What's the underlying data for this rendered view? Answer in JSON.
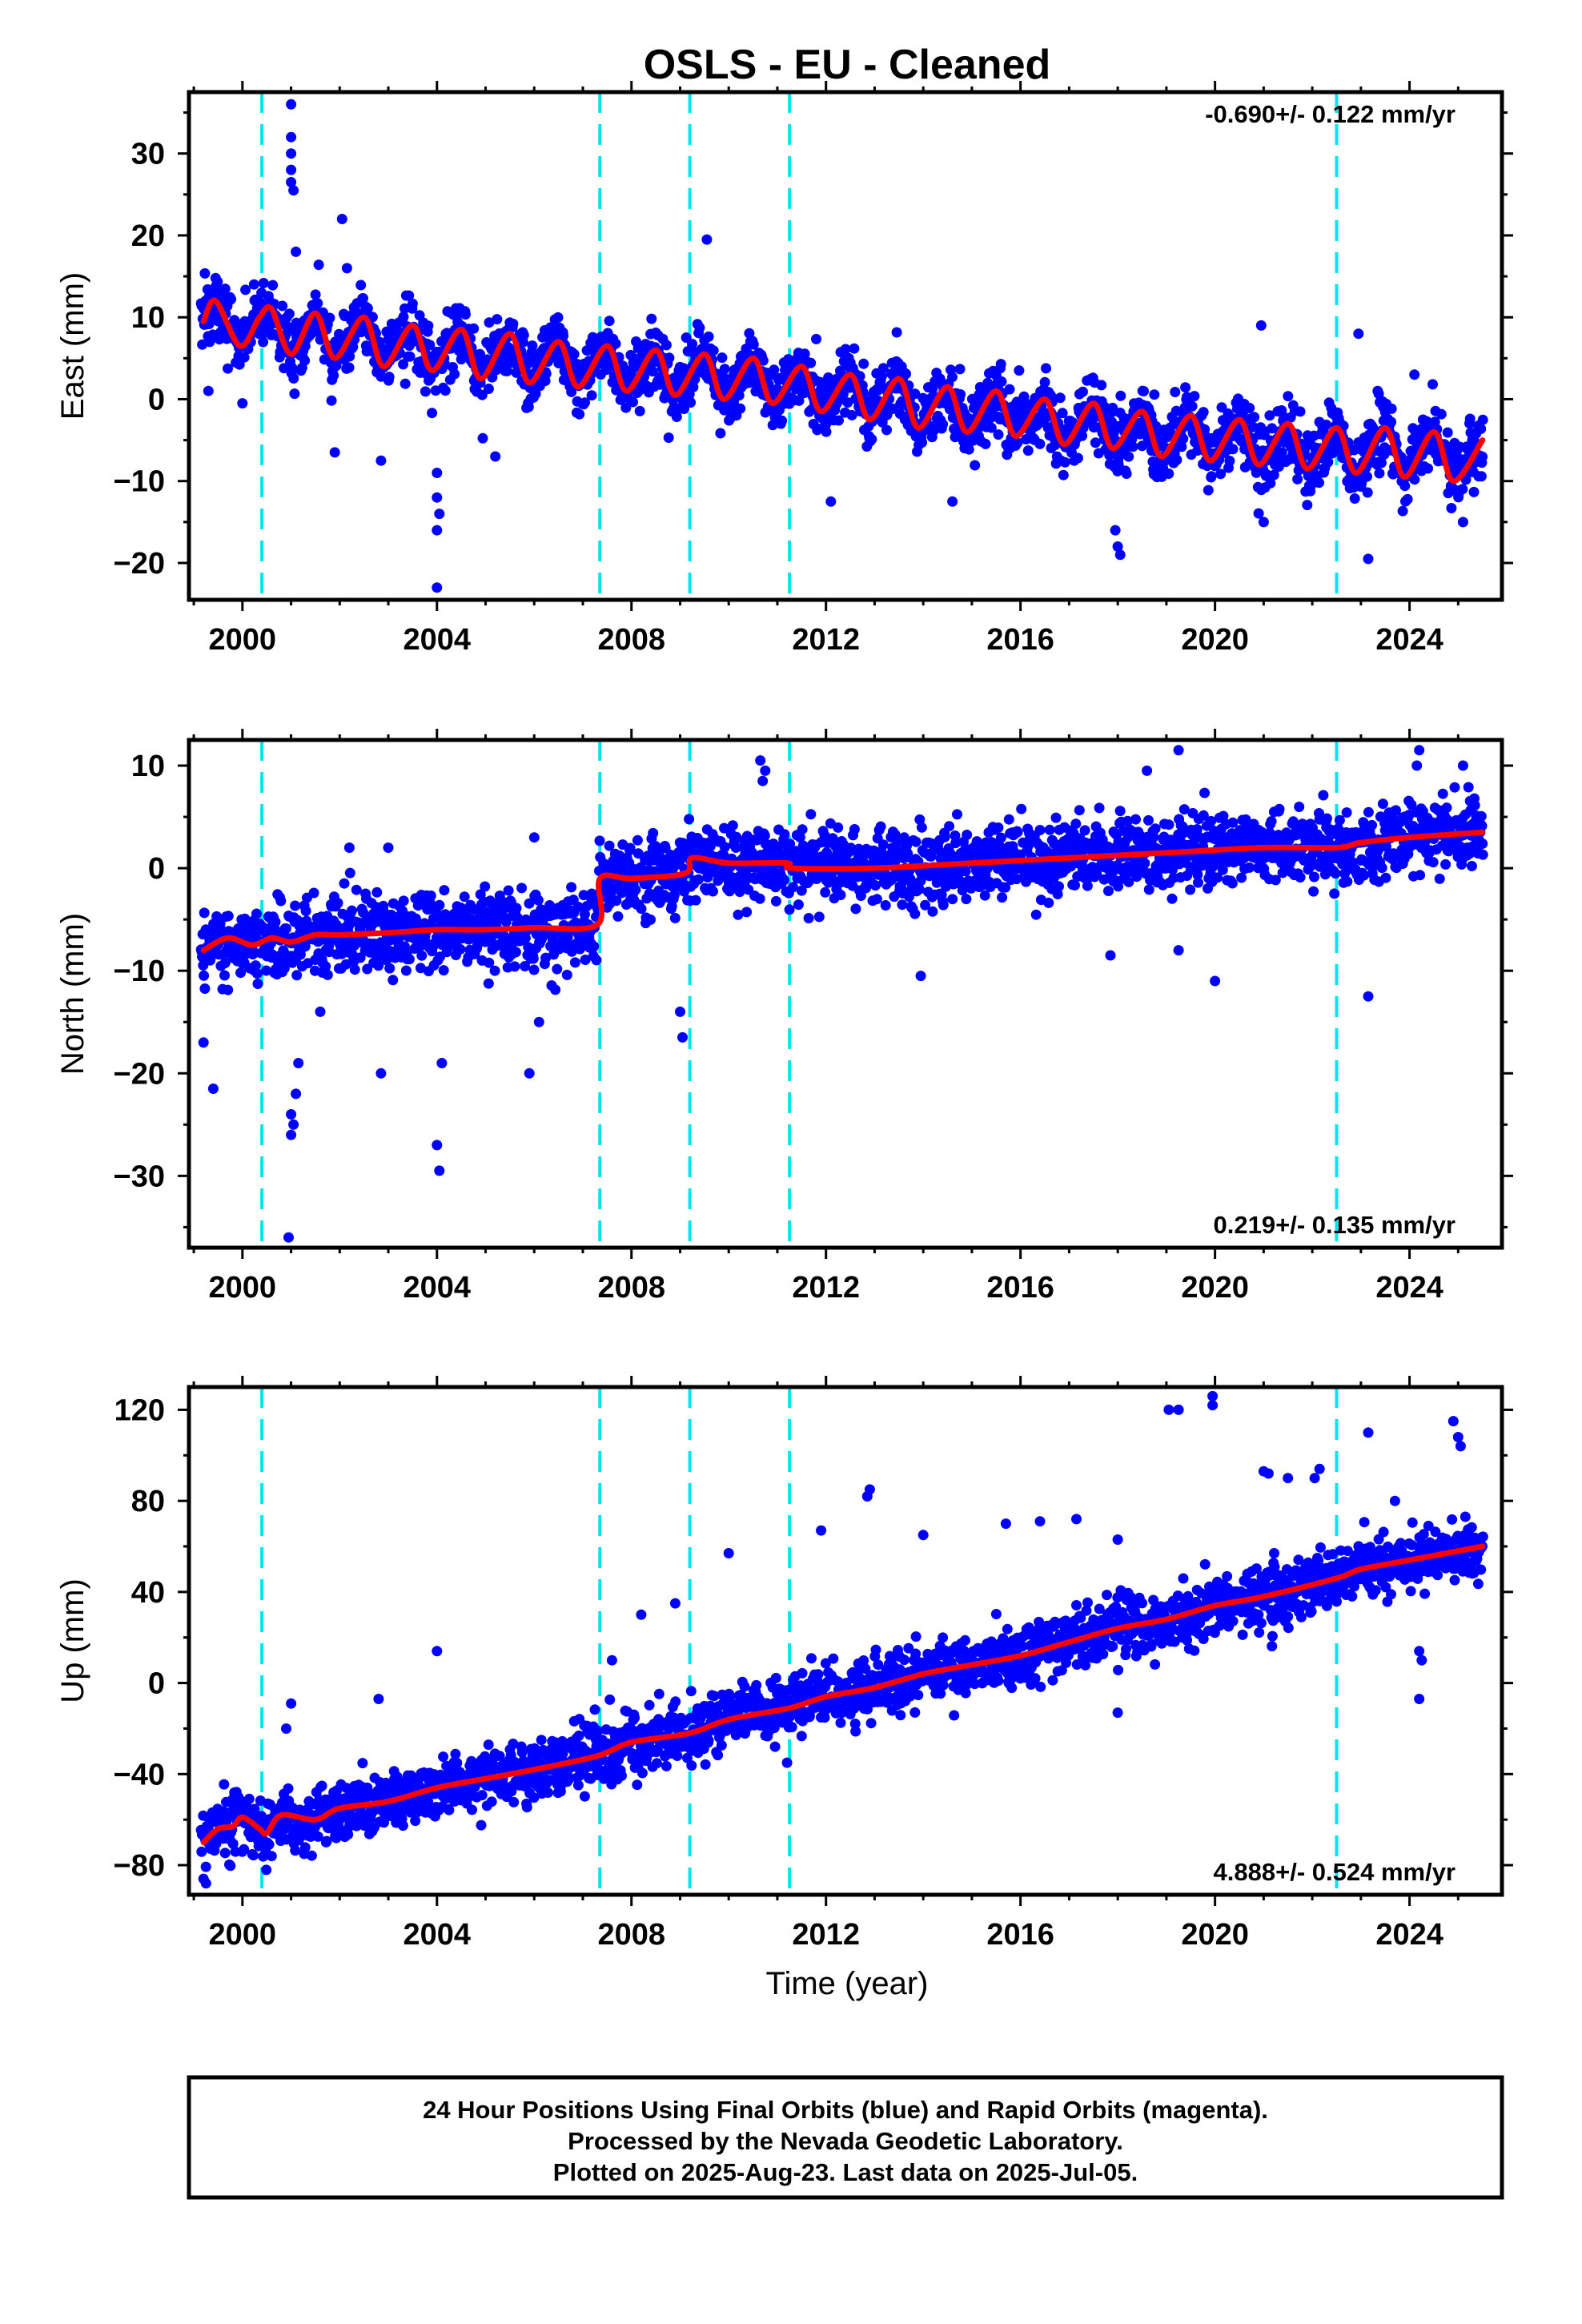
{
  "title": "OSLS  - EU - Cleaned",
  "x_axis_label": "Time (year)",
  "footer": {
    "line1": "24 Hour Positions Using Final Orbits (blue) and Rapid Orbits (magenta).",
    "line2": "Processed by the Nevada Geodetic Laboratory.",
    "line3": "Plotted on 2025-Aug-23. Last data on 2025-Jul-05."
  },
  "colors": {
    "final_orbit_points": "#0000ff",
    "model_fit": "#ff0000",
    "offset_lines": "#00e5ee"
  },
  "chart_data": [
    {
      "type": "scatter",
      "component": "East",
      "ylabel": "East (mm)",
      "xlim": [
        1998.9,
        2025.9
      ],
      "ylim": [
        -24.5,
        37.5
      ],
      "x_ticks": [
        2000,
        2004,
        2008,
        2012,
        2016,
        2020,
        2024
      ],
      "y_ticks": [
        -20,
        -10,
        0,
        10,
        20,
        30
      ],
      "rate_label": "-0.690+/- 0.122 mm/yr",
      "rate_label_position": "top-right",
      "data_start": 1999.15,
      "data_end": 2025.51,
      "fit_points": [
        [
          1999.2,
          9.5
        ],
        [
          1999.45,
          12.0
        ],
        [
          1999.95,
          6.5
        ],
        [
          2000.35,
          10.0
        ],
        [
          2000.6,
          11.0
        ],
        [
          2001.0,
          5.5
        ],
        [
          2001.5,
          10.5
        ],
        [
          2001.9,
          5.0
        ],
        [
          2002.5,
          10.0
        ],
        [
          2002.9,
          4.0
        ],
        [
          2003.5,
          9.0
        ],
        [
          2003.9,
          3.5
        ],
        [
          2004.5,
          8.5
        ],
        [
          2004.9,
          2.5
        ],
        [
          2005.5,
          8.0
        ],
        [
          2005.9,
          2.0
        ],
        [
          2006.5,
          7.0
        ],
        [
          2006.9,
          1.5
        ],
        [
          2007.5,
          6.5
        ],
        [
          2007.9,
          1.0
        ],
        [
          2008.5,
          6.0
        ],
        [
          2008.9,
          0.5
        ],
        [
          2009.5,
          5.5
        ],
        [
          2009.9,
          0.0
        ],
        [
          2010.5,
          5.0
        ],
        [
          2010.9,
          -0.5
        ],
        [
          2011.5,
          4.0
        ],
        [
          2011.9,
          -1.5
        ],
        [
          2012.5,
          3.0
        ],
        [
          2012.9,
          -2.5
        ],
        [
          2013.5,
          2.5
        ],
        [
          2013.9,
          -3.5
        ],
        [
          2014.5,
          1.5
        ],
        [
          2014.9,
          -4.0
        ],
        [
          2015.5,
          1.0
        ],
        [
          2015.9,
          -4.5
        ],
        [
          2016.5,
          0.0
        ],
        [
          2016.9,
          -5.5
        ],
        [
          2017.5,
          -0.5
        ],
        [
          2017.9,
          -6.0
        ],
        [
          2018.5,
          -1.5
        ],
        [
          2018.9,
          -7.0
        ],
        [
          2019.5,
          -2.0
        ],
        [
          2019.9,
          -7.5
        ],
        [
          2020.5,
          -2.5
        ],
        [
          2020.9,
          -8.0
        ],
        [
          2021.5,
          -3.0
        ],
        [
          2021.9,
          -8.5
        ],
        [
          2022.5,
          -3.5
        ],
        [
          2022.9,
          -9.0
        ],
        [
          2023.5,
          -3.5
        ],
        [
          2023.9,
          -9.5
        ],
        [
          2024.5,
          -4.0
        ],
        [
          2024.9,
          -10.0
        ],
        [
          2025.5,
          -5.0
        ]
      ],
      "offsets": [
        2000.4,
        2007.35,
        2009.2,
        2011.25,
        2022.5
      ],
      "outliers": [
        [
          2001.0,
          36
        ],
        [
          2001.0,
          32
        ],
        [
          2001.0,
          30
        ],
        [
          2001.0,
          28
        ],
        [
          2001.0,
          26.5
        ],
        [
          2001.05,
          25.5
        ],
        [
          2001.1,
          18
        ],
        [
          2002.05,
          22
        ],
        [
          2002.15,
          16
        ],
        [
          2009.55,
          19.5
        ],
        [
          2020.95,
          9
        ],
        [
          2022.95,
          8
        ],
        [
          2004.0,
          -23
        ],
        [
          2004.0,
          -16
        ],
        [
          2004.05,
          -14
        ],
        [
          2004.0,
          -12
        ],
        [
          2004.0,
          -9
        ],
        [
          2017.95,
          -16
        ],
        [
          2018.0,
          -18
        ],
        [
          2018.05,
          -19
        ],
        [
          2023.15,
          -19.5
        ],
        [
          2021.0,
          -15
        ],
        [
          2012.1,
          -12.5
        ],
        [
          2014.6,
          -12.5
        ],
        [
          2001.9,
          -6.5
        ],
        [
          2002.85,
          -7.5
        ],
        [
          2005.2,
          -7
        ],
        [
          1999.3,
          1
        ],
        [
          2000.0,
          -0.5
        ],
        [
          2024.1,
          3
        ],
        [
          2025.1,
          -15
        ]
      ]
    },
    {
      "type": "scatter",
      "component": "North",
      "ylabel": "North (mm)",
      "xlim": [
        1998.9,
        2025.9
      ],
      "ylim": [
        -37,
        12.5
      ],
      "x_ticks": [
        2000,
        2004,
        2008,
        2012,
        2016,
        2020,
        2024
      ],
      "y_ticks": [
        -30,
        -20,
        -10,
        0,
        10
      ],
      "rate_label": "0.219+/- 0.135 mm/yr",
      "rate_label_position": "bottom-right",
      "data_start": 1999.15,
      "data_end": 2025.51,
      "fit_points": [
        [
          1999.2,
          -8.0
        ],
        [
          1999.7,
          -6.8
        ],
        [
          2000.2,
          -7.5
        ],
        [
          2000.6,
          -6.8
        ],
        [
          2001.0,
          -7.2
        ],
        [
          2001.5,
          -6.5
        ],
        [
          2002.0,
          -6.5
        ],
        [
          2003.0,
          -6.3
        ],
        [
          2004.0,
          -6.0
        ],
        [
          2005.0,
          -6.0
        ],
        [
          2006.0,
          -5.8
        ],
        [
          2007.3,
          -5.5
        ],
        [
          2007.35,
          -1.0
        ],
        [
          2008.0,
          -1.0
        ],
        [
          2009.1,
          -0.5
        ],
        [
          2009.25,
          1.0
        ],
        [
          2010.0,
          0.5
        ],
        [
          2011.2,
          0.5
        ],
        [
          2011.3,
          0.0
        ],
        [
          2013.0,
          0.0
        ],
        [
          2015.0,
          0.5
        ],
        [
          2017.0,
          1.0
        ],
        [
          2019.0,
          1.5
        ],
        [
          2021.0,
          2.0
        ],
        [
          2022.5,
          2.0
        ],
        [
          2023.0,
          2.5
        ],
        [
          2024.0,
          3.0
        ],
        [
          2025.5,
          3.5
        ]
      ],
      "offsets": [
        2000.4,
        2007.35,
        2009.2,
        2011.25,
        2022.5
      ],
      "outliers": [
        [
          1999.2,
          -17
        ],
        [
          1999.4,
          -21.5
        ],
        [
          2000.95,
          -36
        ],
        [
          2001.0,
          -26
        ],
        [
          2001.05,
          -25
        ],
        [
          2001.0,
          -24
        ],
        [
          2001.1,
          -22
        ],
        [
          2001.15,
          -19
        ],
        [
          2001.6,
          -14
        ],
        [
          2004.0,
          -27
        ],
        [
          2004.05,
          -29.5
        ],
        [
          2004.1,
          -19
        ],
        [
          2002.85,
          -20
        ],
        [
          2005.9,
          -20
        ],
        [
          2006.1,
          -15
        ],
        [
          2009.0,
          -14
        ],
        [
          2009.05,
          -16.5
        ],
        [
          2010.65,
          10.5
        ],
        [
          2010.75,
          9.5
        ],
        [
          2010.7,
          8.5
        ],
        [
          2019.25,
          11.5
        ],
        [
          2018.6,
          9.5
        ],
        [
          2024.2,
          11.5
        ],
        [
          2024.15,
          10
        ],
        [
          2025.1,
          10
        ],
        [
          2020.0,
          -11
        ],
        [
          2019.25,
          -8
        ],
        [
          2023.15,
          -12.5
        ],
        [
          2013.95,
          -10.5
        ],
        [
          2017.85,
          -8.5
        ],
        [
          2006.0,
          3
        ],
        [
          2003.0,
          2
        ],
        [
          2002.2,
          2
        ]
      ]
    },
    {
      "type": "scatter",
      "component": "Up",
      "ylabel": "Up (mm)",
      "xlim": [
        1998.9,
        2025.9
      ],
      "ylim": [
        -93,
        130
      ],
      "x_ticks": [
        2000,
        2004,
        2008,
        2012,
        2016,
        2020,
        2024
      ],
      "y_ticks": [
        -80,
        -40,
        0,
        40,
        80,
        120
      ],
      "rate_label": "4.888+/- 0.524 mm/yr",
      "rate_label_position": "bottom-right",
      "data_start": 1999.15,
      "data_end": 2025.51,
      "fit_points": [
        [
          1999.2,
          -70.0
        ],
        [
          1999.5,
          -64.0
        ],
        [
          1999.8,
          -63.0
        ],
        [
          2000.0,
          -59.0
        ],
        [
          2000.35,
          -64.0
        ],
        [
          2000.5,
          -66.0
        ],
        [
          2000.8,
          -58.0
        ],
        [
          2001.5,
          -60.0
        ],
        [
          2002.0,
          -55.0
        ],
        [
          2003.0,
          -52.0
        ],
        [
          2004.0,
          -46.0
        ],
        [
          2005.0,
          -42.0
        ],
        [
          2006.0,
          -38.0
        ],
        [
          2007.3,
          -32.0
        ],
        [
          2008.0,
          -26.0
        ],
        [
          2009.2,
          -22.0
        ],
        [
          2010.0,
          -16.0
        ],
        [
          2011.25,
          -11.0
        ],
        [
          2012.0,
          -6.0
        ],
        [
          2013.0,
          -2.0
        ],
        [
          2014.0,
          4.0
        ],
        [
          2015.0,
          8.0
        ],
        [
          2016.0,
          12.0
        ],
        [
          2017.0,
          18.0
        ],
        [
          2018.0,
          24.0
        ],
        [
          2019.0,
          28.0
        ],
        [
          2020.0,
          34.0
        ],
        [
          2021.0,
          38.0
        ],
        [
          2022.5,
          46.0
        ],
        [
          2023.0,
          50.0
        ],
        [
          2024.0,
          54.0
        ],
        [
          2025.5,
          60.0
        ]
      ],
      "offsets": [
        2000.4,
        2007.35,
        2009.2,
        2011.25,
        2022.5
      ],
      "outliers": [
        [
          2019.95,
          126
        ],
        [
          2019.95,
          122
        ],
        [
          2019.05,
          120
        ],
        [
          2019.25,
          120
        ],
        [
          2021.0,
          93
        ],
        [
          2021.1,
          92
        ],
        [
          2021.5,
          90
        ],
        [
          2022.15,
          94
        ],
        [
          2022.05,
          90
        ],
        [
          2023.15,
          110
        ],
        [
          2024.9,
          115
        ],
        [
          2025.0,
          108
        ],
        [
          2025.05,
          104
        ],
        [
          2012.9,
          85
        ],
        [
          2012.85,
          82
        ],
        [
          2011.9,
          67
        ],
        [
          2018.0,
          63
        ],
        [
          2014.0,
          65
        ],
        [
          2015.7,
          70
        ],
        [
          2016.4,
          71
        ],
        [
          2017.15,
          72
        ],
        [
          2010.0,
          57
        ],
        [
          2008.9,
          35
        ],
        [
          2004.0,
          14
        ],
        [
          2024.2,
          14
        ],
        [
          2024.25,
          10
        ],
        [
          2024.2,
          -7
        ],
        [
          2002.8,
          -7
        ],
        [
          2001.0,
          -9
        ],
        [
          2000.9,
          -20
        ],
        [
          2018.0,
          -13
        ],
        [
          2011.2,
          -35
        ],
        [
          1999.25,
          -88
        ],
        [
          1999.2,
          -86
        ],
        [
          2023.7,
          80
        ],
        [
          2008.2,
          30
        ],
        [
          2007.6,
          10
        ]
      ]
    }
  ]
}
